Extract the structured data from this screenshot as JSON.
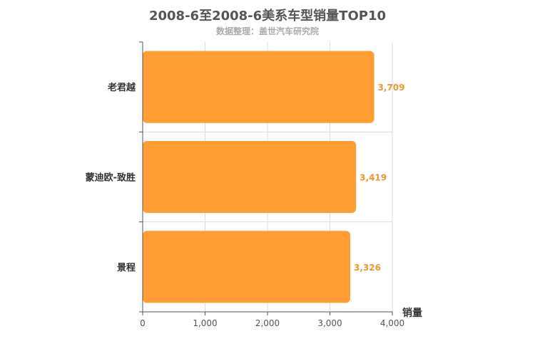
{
  "chart_data": {
    "type": "bar",
    "orientation": "horizontal",
    "title": "2008-6至2008-6美系车型销量TOP10",
    "subtitle": "数据整理：盖世汽车研究院",
    "xlabel": "销量",
    "ylabel": "",
    "categories": [
      "老君越",
      "蒙迪欧-致胜",
      "景程"
    ],
    "values": [
      3709,
      3419,
      3326
    ],
    "value_labels": [
      "3,709",
      "3,419",
      "3,326"
    ],
    "xlim": [
      0,
      4000
    ],
    "x_ticks": [
      0,
      1000,
      2000,
      3000,
      4000
    ],
    "x_tick_labels": [
      "0",
      "1,000",
      "2,000",
      "3,000",
      "4,000"
    ],
    "grid": true,
    "colors": {
      "bar": "#ff9c33",
      "label": "#f0952e",
      "axis": "#555555",
      "grid": "#dddddd",
      "title": "#555555",
      "subtitle": "#aaaaaa"
    }
  }
}
